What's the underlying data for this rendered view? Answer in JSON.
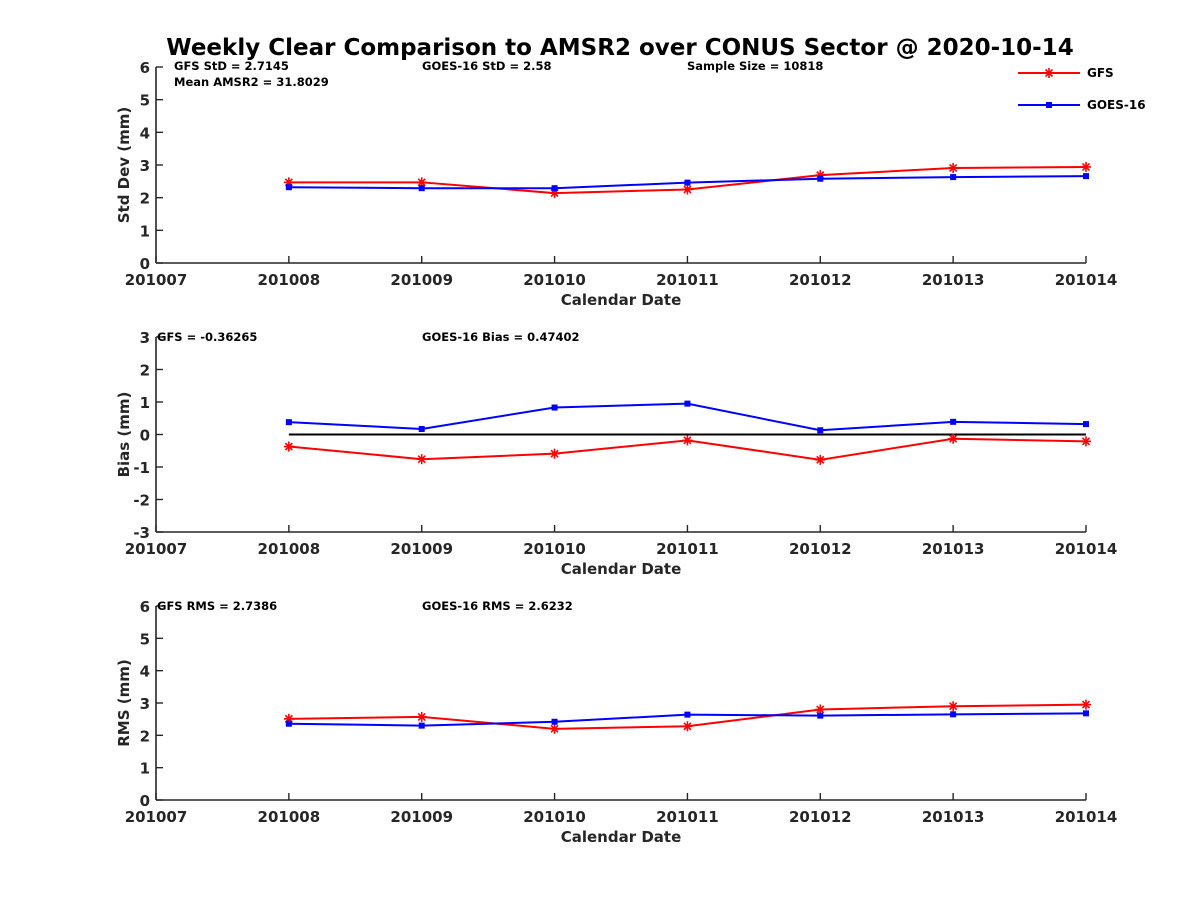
{
  "figure": {
    "title": "Weekly Clear Comparison to AMSR2 over CONUS Sector @ 2020-10-14"
  },
  "legend": {
    "placement": "top-right",
    "items": [
      {
        "name": "GFS",
        "color": "#ff0000",
        "marker": "asterisk"
      },
      {
        "name": "GOES-16",
        "color": "#0000ff",
        "marker": "square"
      }
    ]
  },
  "chart_data": [
    {
      "type": "line",
      "xlabel": "Calendar Date",
      "ylabel": "Std Dev (mm)",
      "x": [
        "201007",
        "201008",
        "201009",
        "201010",
        "201011",
        "201012",
        "201013",
        "201014"
      ],
      "ylim": [
        0,
        6
      ],
      "yticks": [
        0,
        1,
        2,
        3,
        4,
        5,
        6
      ],
      "grid": false,
      "annotations": [
        "GFS StD = 2.7145",
        "GOES-16 StD = 2.58",
        "Sample Size = 10818",
        "Mean AMSR2 = 31.8029"
      ],
      "series": [
        {
          "name": "GFS",
          "color": "#ff0000",
          "marker": "asterisk",
          "x": [
            "201008",
            "201009",
            "201010",
            "201011",
            "201012",
            "201013",
            "201014"
          ],
          "values": [
            2.47,
            2.47,
            2.14,
            2.25,
            2.69,
            2.91,
            2.94
          ]
        },
        {
          "name": "GOES-16",
          "color": "#0000ff",
          "marker": "square",
          "x": [
            "201008",
            "201009",
            "201010",
            "201011",
            "201012",
            "201013",
            "201014"
          ],
          "values": [
            2.32,
            2.29,
            2.29,
            2.46,
            2.58,
            2.63,
            2.66
          ]
        }
      ]
    },
    {
      "type": "line",
      "xlabel": "Calendar Date",
      "ylabel": "Bias (mm)",
      "x": [
        "201007",
        "201008",
        "201009",
        "201010",
        "201011",
        "201012",
        "201013",
        "201014"
      ],
      "ylim": [
        -3,
        3
      ],
      "yticks": [
        -3,
        -2,
        -1,
        0,
        1,
        2,
        3
      ],
      "grid": false,
      "zero_line": true,
      "annotations": [
        "GFS = -0.36265",
        "GOES-16 Bias  = 0.47402"
      ],
      "series": [
        {
          "name": "GFS",
          "color": "#ff0000",
          "marker": "asterisk",
          "x": [
            "201008",
            "201009",
            "201010",
            "201011",
            "201012",
            "201013",
            "201014"
          ],
          "values": [
            -0.37,
            -0.76,
            -0.59,
            -0.18,
            -0.78,
            -0.13,
            -0.21
          ]
        },
        {
          "name": "GOES-16",
          "color": "#0000ff",
          "marker": "square",
          "x": [
            "201008",
            "201009",
            "201010",
            "201011",
            "201012",
            "201013",
            "201014"
          ],
          "values": [
            0.38,
            0.17,
            0.83,
            0.95,
            0.13,
            0.39,
            0.32
          ]
        }
      ]
    },
    {
      "type": "line",
      "xlabel": "Calendar Date",
      "ylabel": "RMS (mm)",
      "x": [
        "201007",
        "201008",
        "201009",
        "201010",
        "201011",
        "201012",
        "201013",
        "201014"
      ],
      "ylim": [
        0,
        6
      ],
      "yticks": [
        0,
        1,
        2,
        3,
        4,
        5,
        6
      ],
      "grid": false,
      "annotations": [
        "GFS RMS = 2.7386",
        "GOES-16 RMS = 2.6232"
      ],
      "series": [
        {
          "name": "GFS",
          "color": "#ff0000",
          "marker": "asterisk",
          "x": [
            "201008",
            "201009",
            "201010",
            "201011",
            "201012",
            "201013",
            "201014"
          ],
          "values": [
            2.51,
            2.57,
            2.2,
            2.28,
            2.8,
            2.9,
            2.95
          ]
        },
        {
          "name": "GOES-16",
          "color": "#0000ff",
          "marker": "square",
          "x": [
            "201008",
            "201009",
            "201010",
            "201011",
            "201012",
            "201013",
            "201014"
          ],
          "values": [
            2.36,
            2.3,
            2.42,
            2.64,
            2.61,
            2.65,
            2.68
          ]
        }
      ]
    }
  ]
}
